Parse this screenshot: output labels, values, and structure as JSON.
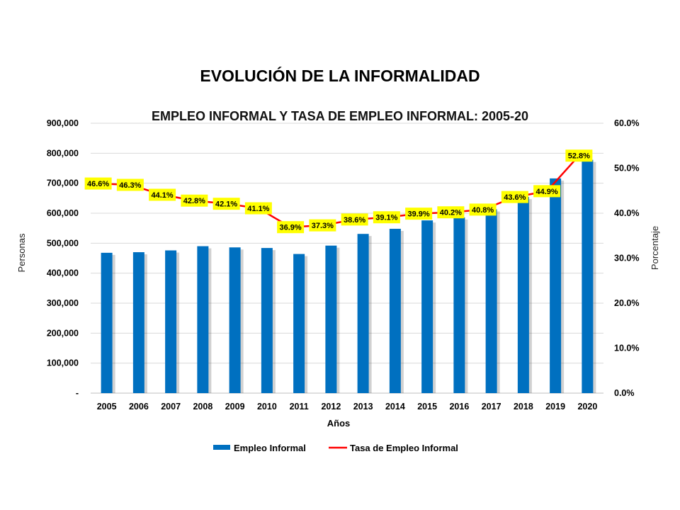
{
  "page_title": "EVOLUCIÓN DE LA INFORMALIDAD",
  "chart_data": {
    "type": "bar",
    "title": "EMPLEO INFORMAL Y TASA DE EMPLEO INFORMAL: 2005-20",
    "xlabel": "Años",
    "ylabel": "Personas",
    "y2label": "Porcentaje",
    "ylim": [
      0,
      900000
    ],
    "y2lim": [
      0,
      60
    ],
    "y_ticks": [
      "-",
      "100,000",
      "200,000",
      "300,000",
      "400,000",
      "500,000",
      "600,000",
      "700,000",
      "800,000",
      "900,000"
    ],
    "y2_ticks": [
      "0.0%",
      "10.0%",
      "20.0%",
      "30.0%",
      "40.0%",
      "50.0%",
      "60.0%"
    ],
    "grid": true,
    "legend_position": "bottom",
    "categories": [
      "2005",
      "2006",
      "2007",
      "2008",
      "2009",
      "2010",
      "2011",
      "2012",
      "2013",
      "2014",
      "2015",
      "2016",
      "2017",
      "2018",
      "2019",
      "2020"
    ],
    "series": [
      {
        "name": "Empleo Informal",
        "type": "bar",
        "axis": "left",
        "color": "#0070C0",
        "values": [
          468000,
          470000,
          476000,
          490000,
          486000,
          484000,
          464000,
          492000,
          531000,
          548000,
          576000,
          586000,
          613000,
          654000,
          716000,
          778000
        ]
      },
      {
        "name": "Tasa de Empleo Informal",
        "type": "line",
        "axis": "right",
        "color": "#FF0000",
        "values": [
          46.6,
          46.3,
          44.1,
          42.8,
          42.1,
          41.1,
          36.9,
          37.3,
          38.6,
          39.1,
          39.9,
          40.2,
          40.8,
          43.6,
          44.9,
          52.8
        ],
        "data_labels": [
          "46.6%",
          "46.3%",
          "44.1%",
          "42.8%",
          "42.1%",
          "41.1%",
          "36.9%",
          "37.3%",
          "38.6%",
          "39.1%",
          "39.9%",
          "40.2%",
          "40.8%",
          "43.6%",
          "44.9%",
          "52.8%"
        ],
        "label_bg": "#FFFF00"
      }
    ]
  }
}
